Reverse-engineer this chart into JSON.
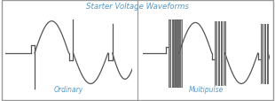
{
  "title": "Starter Voltage Waveforms",
  "title_color": "#5599cc",
  "label_ordinary": "Ordinary",
  "label_multipulse": "Multipulse",
  "label_color": "#5599cc",
  "bg_color": "#ffffff",
  "border_color": "#999999",
  "line_color": "#555555",
  "pulse_fill_color": "#aaaaaa",
  "pulse_edge_color": "#666666",
  "fig_width": 3.1,
  "fig_height": 1.15,
  "dpi": 100
}
